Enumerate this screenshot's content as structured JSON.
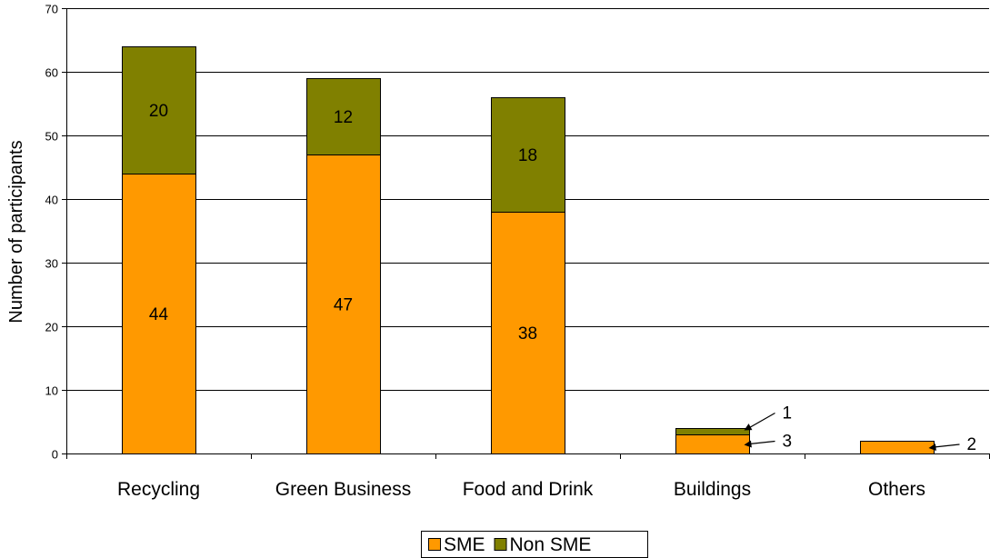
{
  "chart_data": {
    "type": "bar",
    "stacked": true,
    "categories": [
      "Recycling",
      "Green Business",
      "Food and Drink",
      "Buildings",
      "Others"
    ],
    "series": [
      {
        "name": "SME",
        "values": [
          44,
          47,
          38,
          3,
          2
        ],
        "color": "#FF9900"
      },
      {
        "name": "Non SME",
        "values": [
          20,
          12,
          18,
          1,
          0
        ],
        "color": "#808000"
      }
    ],
    "data_labels": {
      "SME": [
        "44",
        "47",
        "38",
        "3",
        "2"
      ],
      "Non SME": [
        "20",
        "12",
        "18",
        "1",
        ""
      ]
    },
    "xlabel": "",
    "ylabel": "Number of participants",
    "ylim": [
      0,
      70
    ],
    "yticks": [
      0,
      10,
      20,
      30,
      40,
      50,
      60,
      70
    ],
    "grid": true,
    "legend_position": "bottom"
  }
}
